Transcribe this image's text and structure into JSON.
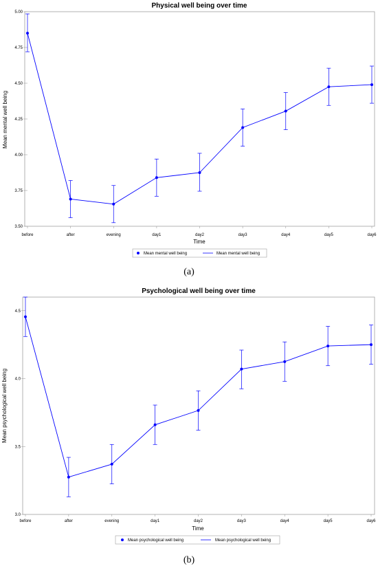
{
  "chart_data": [
    {
      "type": "line",
      "title": "Physical well being over time",
      "xlabel": "Time",
      "ylabel": "Mean mental well being",
      "categories": [
        "before",
        "after",
        "evening",
        "day1",
        "day2",
        "day3",
        "day4",
        "day5",
        "day6"
      ],
      "ylim": [
        3.5,
        5.0
      ],
      "yticks": [
        "3.50",
        "3.75",
        "4.00",
        "4.25",
        "4.50",
        "4.75",
        "5.00"
      ],
      "series": [
        {
          "name": "Mean mental well being",
          "values": [
            4.85,
            3.69,
            3.655,
            3.84,
            3.875,
            4.19,
            4.305,
            4.475,
            4.49
          ],
          "err_low": [
            4.72,
            3.56,
            3.525,
            3.71,
            3.745,
            4.06,
            4.175,
            4.345,
            4.36
          ],
          "err_high": [
            4.985,
            3.82,
            3.785,
            3.97,
            4.01,
            4.32,
            4.435,
            4.605,
            4.62
          ]
        }
      ],
      "legend": {
        "position": "bottom",
        "labels": [
          "Mean mental well being",
          "Mean mental well being"
        ]
      },
      "colors": {
        "series": "#0000ff",
        "axes": "#a0a0a0"
      },
      "panel_label": "(a)"
    },
    {
      "type": "line",
      "title": "Psychological well being over time",
      "xlabel": "Time",
      "ylabel": "Mean psychological well being",
      "categories": [
        "before",
        "after",
        "evening",
        "day1",
        "day2",
        "day3",
        "day4",
        "day5",
        "day6"
      ],
      "ylim": [
        3.0,
        4.6
      ],
      "yticks": [
        "3.0",
        "3.5",
        "4.0",
        "4.5"
      ],
      "series": [
        {
          "name": "Mean psychological well being",
          "values": [
            4.455,
            3.275,
            3.37,
            3.66,
            3.765,
            4.07,
            4.125,
            4.24,
            4.25
          ],
          "err_low": [
            4.31,
            3.13,
            3.225,
            3.515,
            3.62,
            3.925,
            3.98,
            4.095,
            4.105
          ],
          "err_high": [
            4.6,
            3.42,
            3.515,
            3.805,
            3.91,
            4.21,
            4.27,
            4.385,
            4.395
          ]
        }
      ],
      "legend": {
        "position": "bottom",
        "labels": [
          "Mean psychological well being",
          "Mean psychological well being"
        ]
      },
      "colors": {
        "series": "#0000ff",
        "axes": "#a0a0a0"
      },
      "panel_label": "(b)"
    }
  ]
}
